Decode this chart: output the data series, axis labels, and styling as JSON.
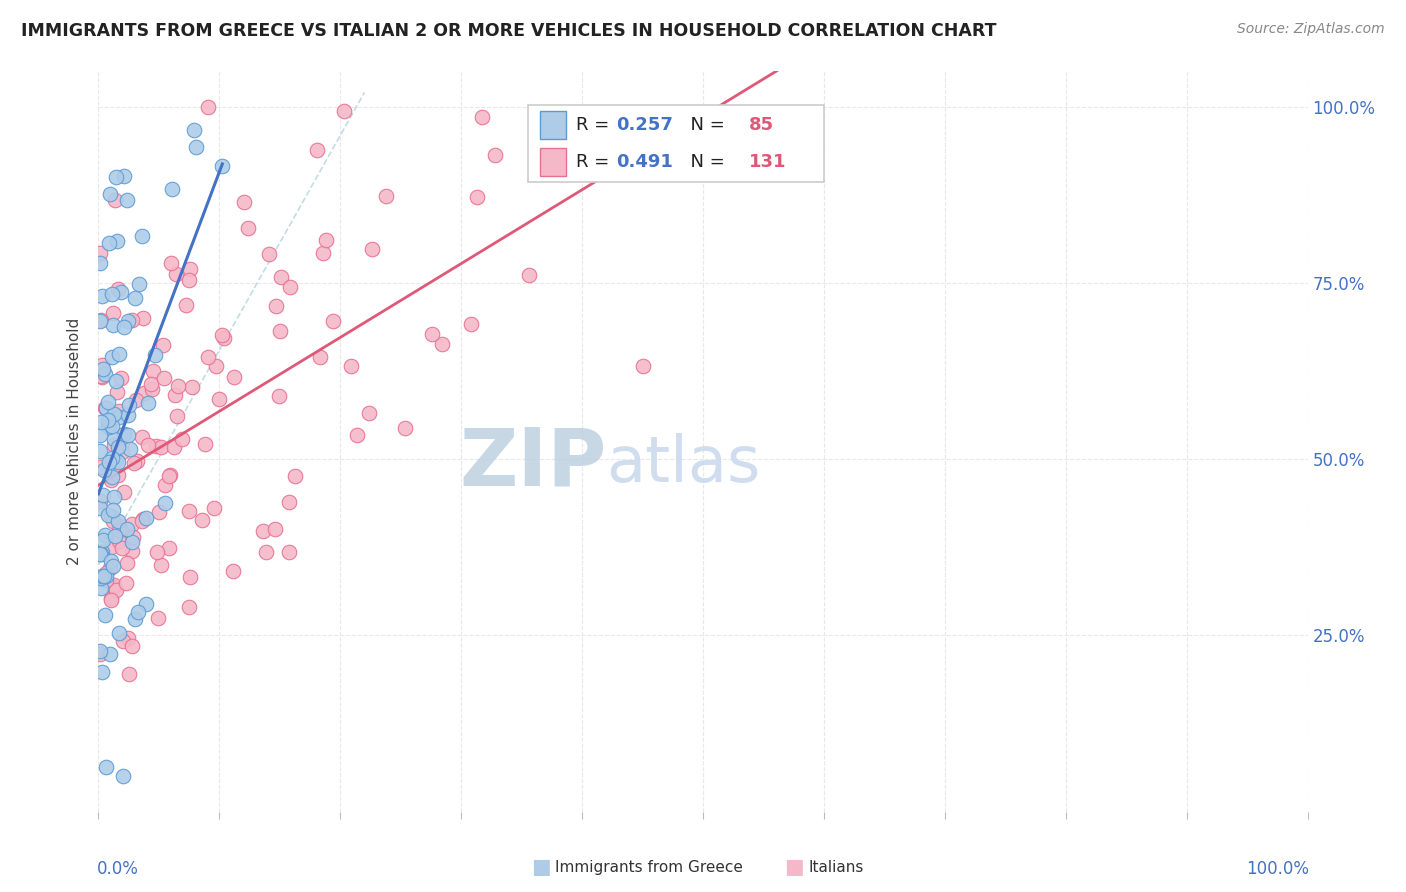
{
  "title": "IMMIGRANTS FROM GREECE VS ITALIAN 2 OR MORE VEHICLES IN HOUSEHOLD CORRELATION CHART",
  "source": "Source: ZipAtlas.com",
  "ylabel": "2 or more Vehicles in Household",
  "legend_label1": "Immigrants from Greece",
  "legend_label2": "Italians",
  "r_greece": 0.257,
  "n_greece": 85,
  "r_italian": 0.491,
  "n_italian": 131,
  "color_greece_fill": "#AECCE8",
  "color_greece_edge": "#5B9BD5",
  "color_greek_line": "#4472C4",
  "color_italian_fill": "#F4B8C8",
  "color_italian_edge": "#E87090",
  "color_italian_line": "#E05878",
  "watermark_zip_color": "#BDD0E0",
  "watermark_atlas_color": "#C8D8EC",
  "background_color": "#FFFFFF",
  "grid_color": "#E8E8E8",
  "right_tick_color": "#4472C4",
  "xlim": [
    0.0,
    1.0
  ],
  "ylim": [
    0.0,
    1.05
  ],
  "ytick_vals": [
    0.25,
    0.5,
    0.75,
    1.0
  ],
  "ytick_labels": [
    "25.0%",
    "50.0%",
    "75.0%",
    "100.0%"
  ]
}
